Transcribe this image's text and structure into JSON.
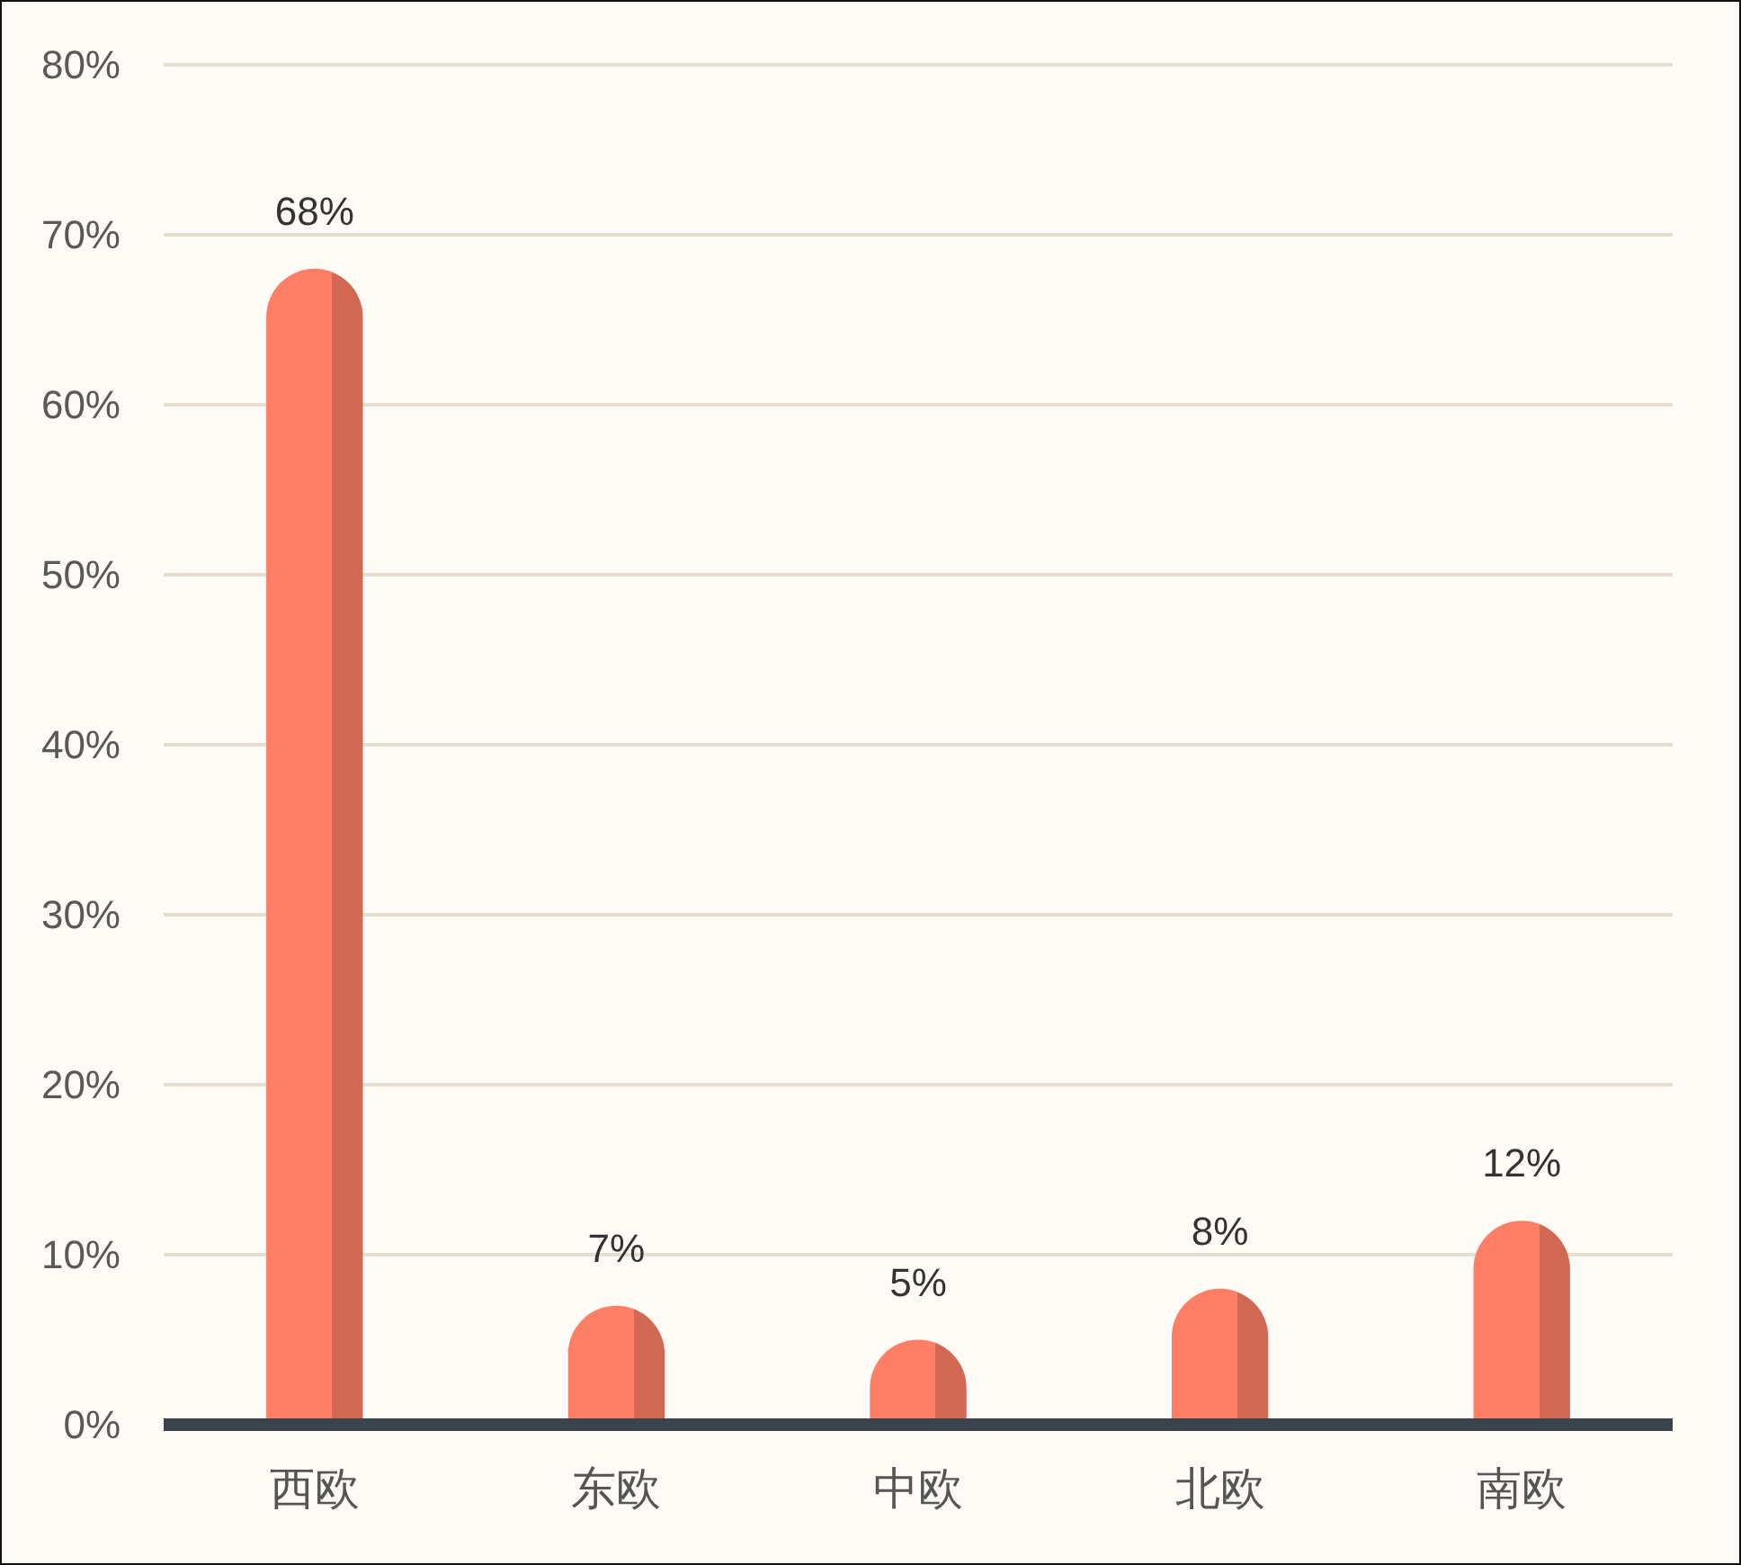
{
  "chart_data": {
    "type": "bar",
    "categories": [
      "西欧",
      "东欧",
      "中欧",
      "北欧",
      "南欧"
    ],
    "values": [
      68,
      7,
      5,
      8,
      12
    ],
    "color": "#ff7f66",
    "value_labels": [
      "68%",
      "7%",
      "5%",
      "8%",
      "12%"
    ],
    "ylim": [
      0,
      80
    ],
    "yticks": [
      {
        "value": 0,
        "label": "0%"
      },
      {
        "value": 10,
        "label": "10%"
      },
      {
        "value": 20,
        "label": "20%"
      },
      {
        "value": 30,
        "label": "30%"
      },
      {
        "value": 40,
        "label": "40%"
      },
      {
        "value": 50,
        "label": "50%"
      },
      {
        "value": 60,
        "label": "60%"
      },
      {
        "value": 70,
        "label": "70%"
      },
      {
        "value": 80,
        "label": "80%"
      }
    ],
    "grid": "y"
  }
}
